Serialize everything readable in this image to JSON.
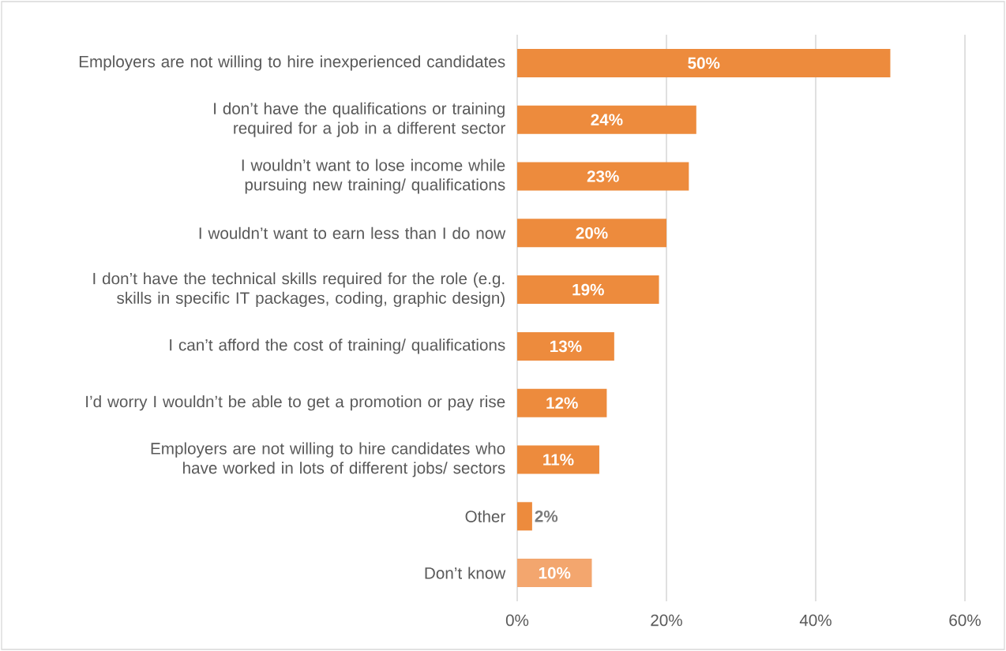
{
  "chart_data": {
    "type": "bar",
    "orientation": "horizontal",
    "categories": [
      "Employers are not willing to hire inexperienced candidates",
      "I don’t have the qualifications or training required for a job in a different sector",
      "I wouldn’t want to lose income while pursuing new training/ qualifications",
      "I wouldn’t want to earn less than I do now",
      "I don’t have the technical skills required for the role (e.g. skills in specific IT packages, coding, graphic design)",
      "I can’t afford the cost of training/ qualifications",
      "I’d worry I wouldn’t be able to get a promotion or pay rise",
      "Employers are not willing to hire candidates who have worked in lots of different jobs/ sectors",
      "Other",
      "Don’t know"
    ],
    "values": [
      50,
      24,
      23,
      20,
      19,
      13,
      12,
      11,
      2,
      10
    ],
    "value_labels": [
      "50%",
      "24%",
      "23%",
      "20%",
      "19%",
      "13%",
      "12%",
      "11%",
      "2%",
      "10%"
    ],
    "colors": [
      "#ed8b3d",
      "#ed8b3d",
      "#ed8b3d",
      "#ed8b3d",
      "#ed8b3d",
      "#ed8b3d",
      "#ed8b3d",
      "#ed8b3d",
      "#ed8b3d",
      "#f3a66e"
    ],
    "xlim": [
      0,
      60
    ],
    "xticks": [
      {
        "value": 0,
        "label": "0%"
      },
      {
        "value": 20,
        "label": "20%"
      },
      {
        "value": 40,
        "label": "40%"
      },
      {
        "value": 60,
        "label": "60%"
      }
    ],
    "grid": "x"
  }
}
